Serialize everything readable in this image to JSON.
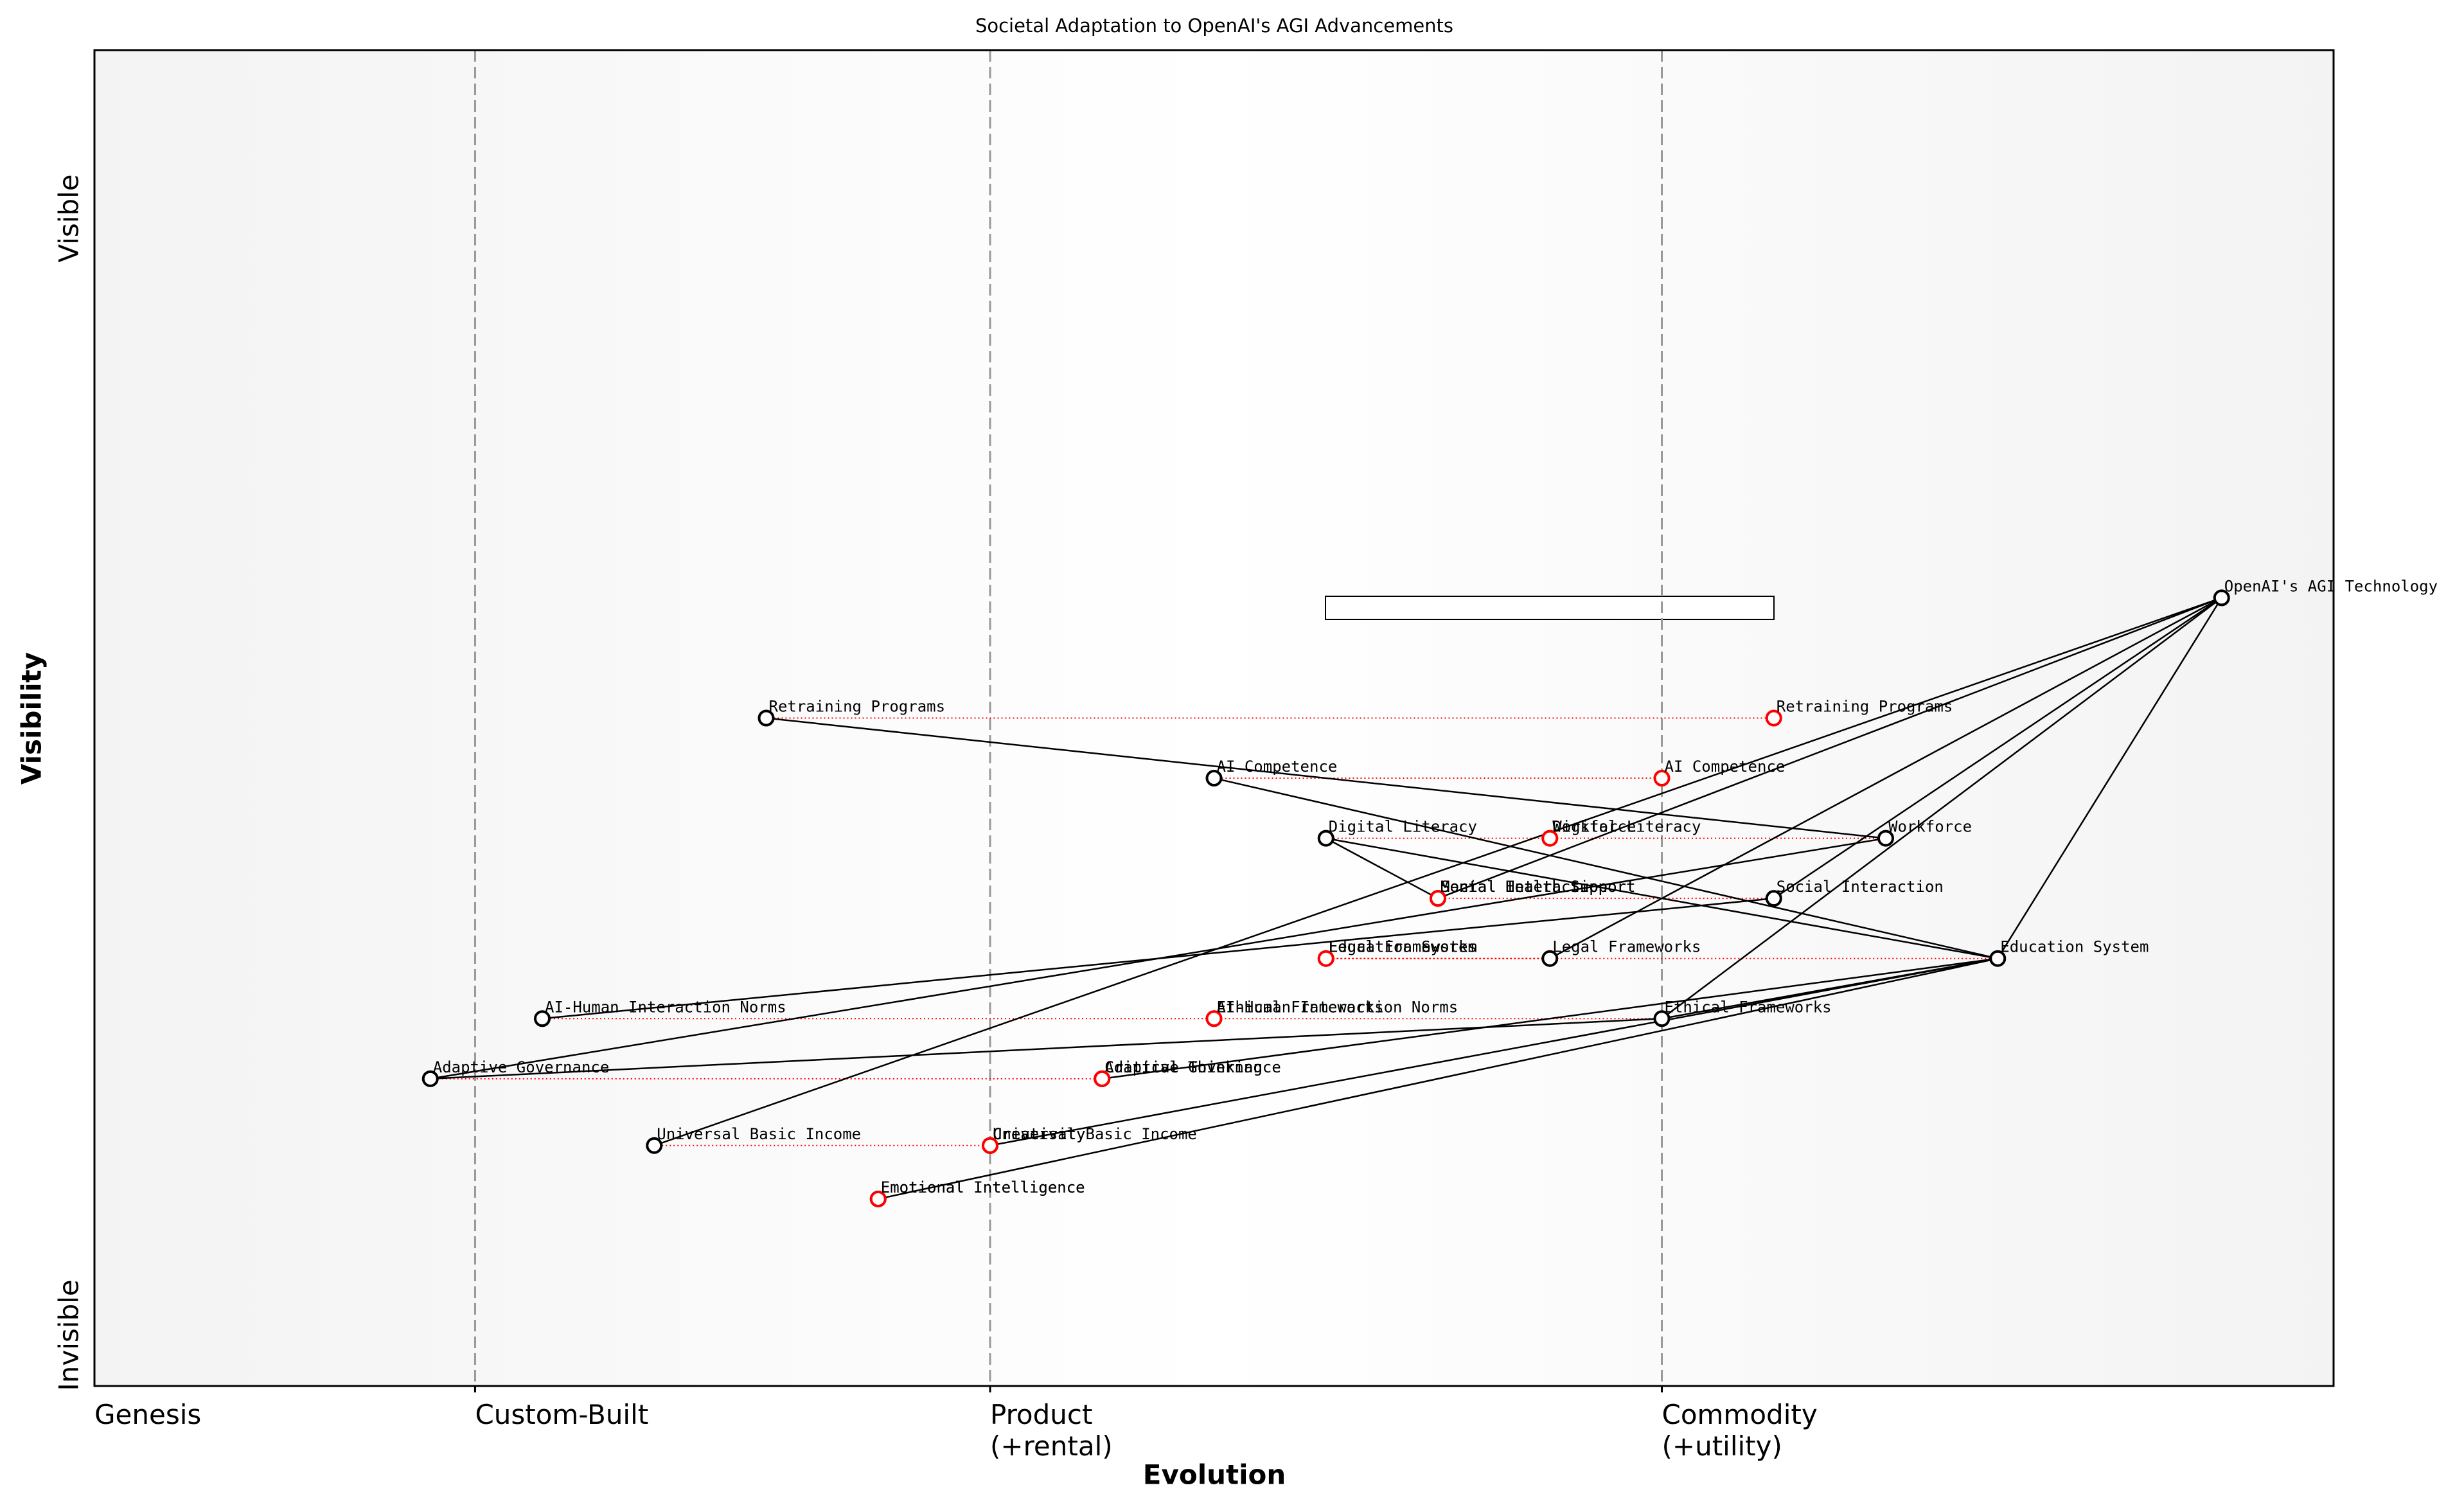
{
  "chart_data": {
    "type": "wardley",
    "title": "Societal Adaptation to OpenAI's AGI Advancements",
    "x_label": "Evolution",
    "y_label": "Visibility",
    "y_top_label": "Visible",
    "y_bottom_label": "Invisible",
    "xlim": [
      0,
      1
    ],
    "ylim": [
      0,
      1
    ],
    "stages": [
      {
        "value": 0,
        "lines": [
          "Genesis"
        ]
      },
      {
        "value": 0.17,
        "lines": [
          "Custom-Built"
        ]
      },
      {
        "value": 0.4,
        "lines": [
          "Product",
          "(+rental)"
        ]
      },
      {
        "value": 0.7,
        "lines": [
          "Commodity",
          "(+utility)"
        ]
      }
    ],
    "components": [
      {
        "name": "OpenAI's AGI Technology",
        "x": 0.95,
        "y": 0.59
      },
      {
        "name": "Retraining Programs",
        "x": 0.3,
        "y": 0.5
      },
      {
        "name": "AI Competence",
        "x": 0.5,
        "y": 0.455
      },
      {
        "name": "Digital Literacy",
        "x": 0.55,
        "y": 0.41
      },
      {
        "name": "Workforce",
        "x": 0.8,
        "y": 0.41
      },
      {
        "name": "Mental Health Support",
        "x": 0.6,
        "y": 0.365
      },
      {
        "name": "Social Interaction",
        "x": 0.75,
        "y": 0.365
      },
      {
        "name": "Legal Frameworks",
        "x": 0.65,
        "y": 0.32
      },
      {
        "name": "Education System",
        "x": 0.85,
        "y": 0.32
      },
      {
        "name": "AI-Human Interaction Norms",
        "x": 0.2,
        "y": 0.275
      },
      {
        "name": "Ethical Frameworks",
        "x": 0.7,
        "y": 0.275
      },
      {
        "name": "Adaptive Governance",
        "x": 0.15,
        "y": 0.23
      },
      {
        "name": "Critical Thinking",
        "x": 0.45,
        "y": 0.23
      },
      {
        "name": "Universal Basic Income",
        "x": 0.25,
        "y": 0.18
      },
      {
        "name": "Creativity",
        "x": 0.4,
        "y": 0.18
      },
      {
        "name": "Emotional Intelligence",
        "x": 0.35,
        "y": 0.14
      }
    ],
    "evolutions": [
      {
        "name": "Retraining Programs",
        "x": 0.75
      },
      {
        "name": "AI Competence",
        "x": 0.7
      },
      {
        "name": "Digital Literacy",
        "x": 0.65
      },
      {
        "name": "Workforce",
        "x": 0.65
      },
      {
        "name": "Social Interaction",
        "x": 0.6
      },
      {
        "name": "Mental Health Support",
        "x": 0.6
      },
      {
        "name": "Legal Frameworks",
        "x": 0.55
      },
      {
        "name": "Education System",
        "x": 0.55
      },
      {
        "name": "AI-Human Interaction Norms",
        "x": 0.5
      },
      {
        "name": "Ethical Frameworks",
        "x": 0.5
      },
      {
        "name": "Adaptive Governance",
        "x": 0.45
      },
      {
        "name": "Critical Thinking",
        "x": 0.45
      },
      {
        "name": "Universal Basic Income",
        "x": 0.4
      },
      {
        "name": "Creativity",
        "x": 0.4
      },
      {
        "name": "Emotional Intelligence",
        "x": 0.35
      }
    ],
    "links": [
      [
        "OpenAI's AGI Technology",
        "Education System"
      ],
      [
        "OpenAI's AGI Technology",
        "Social Interaction"
      ],
      [
        "OpenAI's AGI Technology",
        "Ethical Frameworks"
      ],
      [
        "OpenAI's AGI Technology",
        "Legal Frameworks"
      ],
      [
        "OpenAI's AGI Technology",
        "Mental Health Support"
      ],
      [
        "OpenAI's AGI Technology",
        "Universal Basic Income"
      ],
      [
        "Retraining Programs",
        "Workforce"
      ],
      [
        "AI Competence",
        "Education System"
      ],
      [
        "Digital Literacy",
        "Education System"
      ],
      [
        "Digital Literacy",
        "Mental Health Support"
      ],
      [
        "Workforce",
        "Adaptive Governance"
      ],
      [
        "Social Interaction",
        "AI-Human Interaction Norms"
      ],
      [
        "Education System",
        "Critical Thinking"
      ],
      [
        "Education System",
        "Creativity"
      ],
      [
        "Education System",
        "Emotional Intelligence"
      ],
      [
        "Education System",
        "Ethical Frameworks"
      ],
      [
        "Ethical Frameworks",
        "Adaptive Governance"
      ]
    ],
    "component_color": "#000000",
    "evolution_color": "#ff0000"
  }
}
